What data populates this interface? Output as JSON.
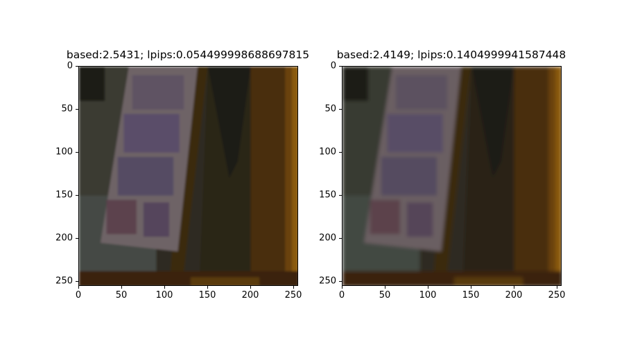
{
  "panels": [
    {
      "title": "based:2.5431; lpips:0.054499998688697815",
      "image": "dim warm-lit photo of a picture poster leaning against a wooden cabinet",
      "xticks": [
        "0",
        "50",
        "100",
        "150",
        "200",
        "250"
      ],
      "yticks": [
        "0",
        "50",
        "100",
        "150",
        "200",
        "250"
      ],
      "xlim": [
        0,
        256
      ],
      "ylim": [
        0,
        256
      ],
      "colors": {
        "background": "#2f2c23",
        "poster": "#6e6366",
        "wood": "#5a3a0d",
        "glow": "#8a5a08"
      }
    },
    {
      "title": "based:2.4149; lpips:0.1404999941587448",
      "image": "blurrier version of the same dim photo of a poster against a wooden cabinet",
      "xticks": [
        "0",
        "50",
        "100",
        "150",
        "200",
        "250"
      ],
      "yticks": [
        "0",
        "50",
        "100",
        "150",
        "200",
        "250"
      ],
      "xlim": [
        0,
        256
      ],
      "ylim": [
        0,
        256
      ],
      "colors": {
        "background": "#2e2b22",
        "poster": "#6a5f62",
        "wood": "#583a0e",
        "glow": "#8a5a08"
      }
    }
  ]
}
